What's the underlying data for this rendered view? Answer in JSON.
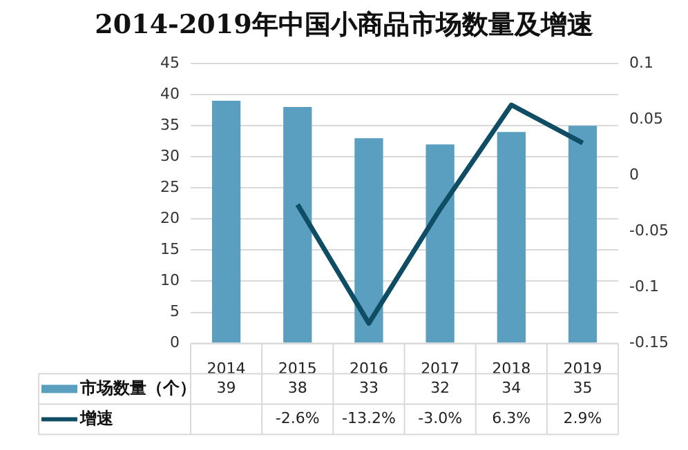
{
  "chart_data": {
    "type": "bar",
    "title": "2014-2019年中国小商品市场数量及增速",
    "categories": [
      "2014",
      "2015",
      "2016",
      "2017",
      "2018",
      "2019"
    ],
    "series": [
      {
        "name": "市场数量（个）",
        "color": "#5a9ec0",
        "values": [
          39,
          38,
          33,
          32,
          34,
          35
        ]
      },
      {
        "name": "增速",
        "type": "line",
        "axis": "y2",
        "color": "#0e4d64",
        "values": [
          null,
          -0.026,
          -0.132,
          -0.03,
          0.063,
          0.029
        ],
        "value_labels": [
          null,
          "-2.6%",
          "-13.2%",
          "-3.0%",
          "6.3%",
          "2.9%"
        ]
      }
    ],
    "ylim": [
      0,
      45
    ],
    "yticks": [
      0,
      5,
      10,
      15,
      20,
      25,
      30,
      35,
      40,
      45
    ],
    "y2lim": [
      -0.15,
      0.1
    ],
    "y2ticks": [
      {
        "value": -0.15,
        "label": "-0.15"
      },
      {
        "value": -0.1,
        "label": "-0.1"
      },
      {
        "value": -0.05,
        "label": "-0.05"
      },
      {
        "value": 0,
        "label": "0"
      },
      {
        "value": 0.05,
        "label": "0.05"
      },
      {
        "value": 0.1,
        "label": "0.1"
      }
    ],
    "grid": "y",
    "legend": "bottom",
    "data_labels": true,
    "marker": "none"
  }
}
